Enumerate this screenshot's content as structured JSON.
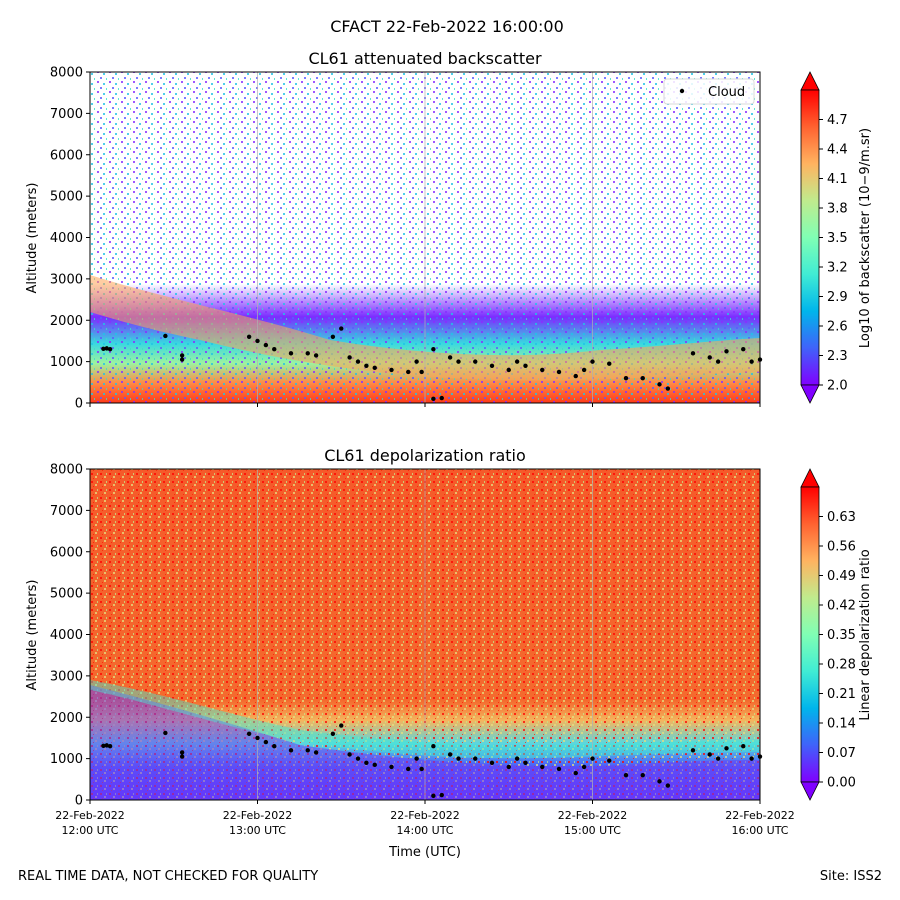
{
  "suptitle": "CFACT 22-Feb-2022 16:00:00",
  "footer": {
    "left": "REAL TIME DATA, NOT CHECKED FOR QUALITY",
    "right": "Site: ISS2"
  },
  "colors": {
    "cloud_marker": "#000000",
    "colormap": [
      "#8000ff",
      "#4062fa",
      "#00b5eb",
      "#40ecd4",
      "#80ffb4",
      "#c0eb8d",
      "#ffb360",
      "#ff6230",
      "#ff0000"
    ]
  },
  "chart_data": [
    {
      "type": "heatmap",
      "title": "CL61 attenuated backscatter",
      "xlabel": "",
      "ylabel": "Altitude (meters)",
      "ylim": [
        0,
        8000
      ],
      "yticks": [
        0,
        1000,
        2000,
        3000,
        4000,
        5000,
        6000,
        7000,
        8000
      ],
      "ytick_labels": [
        "0",
        "1000",
        "2000",
        "3000",
        "4000",
        "5000",
        "6000",
        "7000",
        "8000"
      ],
      "xlim": [
        12.0,
        16.0
      ],
      "xticks": [
        12,
        13,
        14,
        15,
        16
      ],
      "show_xtick_labels": false,
      "legend": {
        "label": "Cloud",
        "location": "top-right"
      },
      "colorbar": {
        "label": "Log10 of backscatter (10−9/m.sr)",
        "range": [
          2.0,
          5.0
        ],
        "ticks": [
          2.0,
          2.3,
          2.6,
          2.9,
          3.2,
          3.5,
          3.8,
          4.1,
          4.4,
          4.7
        ],
        "tick_labels": [
          "2.0",
          "2.3",
          "2.6",
          "2.9",
          "3.2",
          "3.5",
          "3.8",
          "4.1",
          "4.4",
          "4.7"
        ],
        "extend": "both"
      }
    },
    {
      "type": "heatmap",
      "title": "CL61 depolarization ratio",
      "xlabel": "Time (UTC)",
      "ylabel": "Altitude (meters)",
      "ylim": [
        0,
        8000
      ],
      "yticks": [
        0,
        1000,
        2000,
        3000,
        4000,
        5000,
        6000,
        7000,
        8000
      ],
      "ytick_labels": [
        "0",
        "1000",
        "2000",
        "3000",
        "4000",
        "5000",
        "6000",
        "7000",
        "8000"
      ],
      "xlim": [
        12.0,
        16.0
      ],
      "xticks": [
        12,
        13,
        14,
        15,
        16
      ],
      "xtick_labels": [
        [
          "22-Feb-2022",
          "12:00 UTC"
        ],
        [
          "22-Feb-2022",
          "13:00 UTC"
        ],
        [
          "22-Feb-2022",
          "14:00 UTC"
        ],
        [
          "22-Feb-2022",
          "15:00 UTC"
        ],
        [
          "22-Feb-2022",
          "16:00 UTC"
        ]
      ],
      "show_xtick_labels": true,
      "colorbar": {
        "label": "Linear depolarization ratio",
        "range": [
          0.0,
          0.7
        ],
        "ticks": [
          0.0,
          0.07,
          0.14,
          0.21,
          0.28,
          0.35,
          0.42,
          0.49,
          0.56,
          0.63
        ],
        "tick_labels": [
          "0.00",
          "0.07",
          "0.14",
          "0.21",
          "0.28",
          "0.35",
          "0.42",
          "0.49",
          "0.56",
          "0.63"
        ],
        "extend": "both"
      }
    }
  ],
  "cloud_base_series": {
    "name": "Cloud",
    "points": [
      [
        12.08,
        1310
      ],
      [
        12.1,
        1320
      ],
      [
        12.12,
        1300
      ],
      [
        12.45,
        1620
      ],
      [
        12.55,
        1050
      ],
      [
        12.55,
        1150
      ],
      [
        12.95,
        1600
      ],
      [
        13.0,
        1500
      ],
      [
        13.05,
        1400
      ],
      [
        13.1,
        1300
      ],
      [
        13.2,
        1200
      ],
      [
        13.3,
        1200
      ],
      [
        13.35,
        1150
      ],
      [
        13.45,
        1600
      ],
      [
        13.5,
        1800
      ],
      [
        13.55,
        1100
      ],
      [
        13.6,
        1000
      ],
      [
        13.65,
        900
      ],
      [
        13.7,
        850
      ],
      [
        13.8,
        800
      ],
      [
        13.9,
        750
      ],
      [
        13.95,
        1000
      ],
      [
        13.98,
        750
      ],
      [
        14.05,
        100
      ],
      [
        14.1,
        120
      ],
      [
        14.05,
        1300
      ],
      [
        14.15,
        1100
      ],
      [
        14.2,
        1000
      ],
      [
        14.3,
        1000
      ],
      [
        14.4,
        900
      ],
      [
        14.5,
        800
      ],
      [
        14.55,
        1000
      ],
      [
        14.6,
        900
      ],
      [
        14.7,
        800
      ],
      [
        14.8,
        750
      ],
      [
        14.9,
        650
      ],
      [
        14.95,
        800
      ],
      [
        15.0,
        1000
      ],
      [
        15.1,
        950
      ],
      [
        15.2,
        600
      ],
      [
        15.3,
        600
      ],
      [
        15.4,
        450
      ],
      [
        15.45,
        350
      ],
      [
        15.6,
        1200
      ],
      [
        15.7,
        1100
      ],
      [
        15.75,
        1000
      ],
      [
        15.8,
        1250
      ],
      [
        15.9,
        1300
      ],
      [
        15.95,
        1000
      ],
      [
        16.0,
        1050
      ]
    ]
  }
}
